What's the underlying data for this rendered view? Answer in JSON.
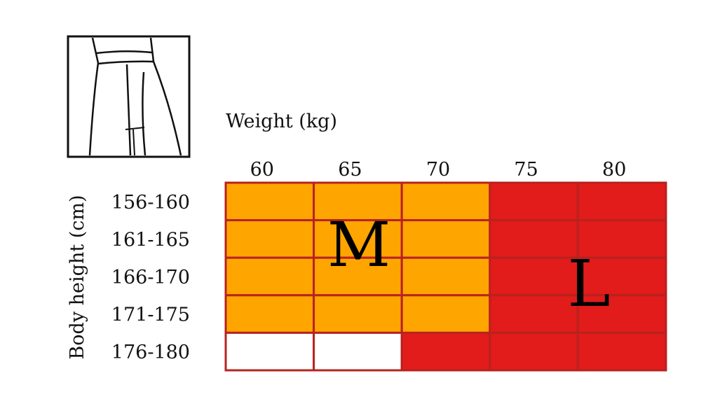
{
  "chart_data": {
    "type": "heatmap",
    "xlabel": "Weight (kg)",
    "ylabel": "Body height (cm)",
    "x_categories": [
      "60",
      "65",
      "70",
      "75",
      "80"
    ],
    "y_categories": [
      "156-160",
      "161-165",
      "166-170",
      "171-175",
      "176-180"
    ],
    "size_labels": {
      "M": "M",
      "L": "L"
    },
    "colors": {
      "M": "#FFA500",
      "L": "#E21B1B",
      "none": "#FFFFFF",
      "grid": "#B7231E"
    },
    "grid": [
      [
        "M",
        "M",
        "M",
        "L",
        "L"
      ],
      [
        "M",
        "M",
        "M",
        "L",
        "L"
      ],
      [
        "M",
        "M",
        "M",
        "L",
        "L"
      ],
      [
        "M",
        "M",
        "M",
        "L",
        "L"
      ],
      [
        "none",
        "none",
        "L",
        "L",
        "L"
      ]
    ]
  },
  "icon": "pants-icon"
}
